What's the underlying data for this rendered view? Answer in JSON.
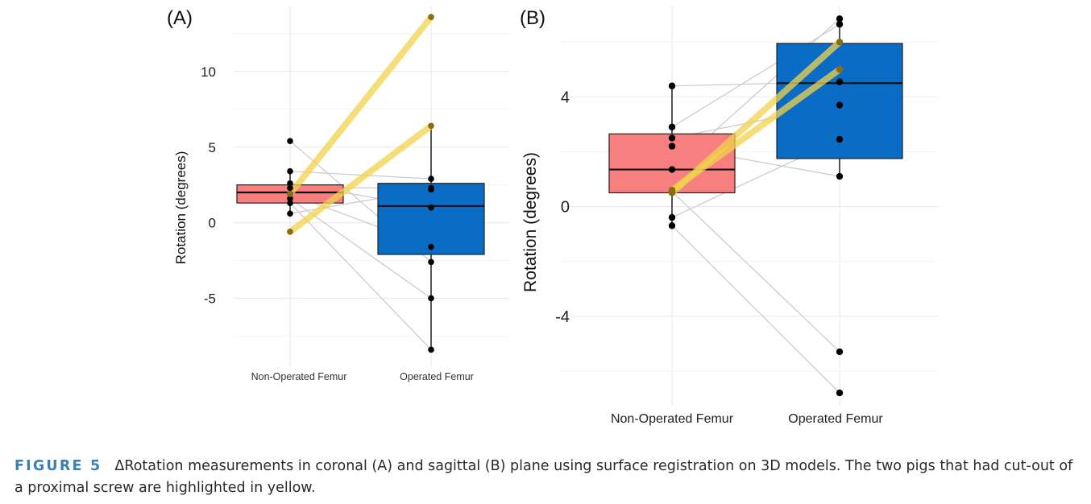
{
  "caption": {
    "label": "FIGURE 5",
    "text": "ΔRotation measurements in coronal (A) and sagittal (B) plane using surface registration on 3D models. The two pigs that had cut-out of a proximal screw are highlighted in yellow."
  },
  "colors": {
    "non_operated_box": "#f77f7f",
    "operated_box": "#0a6cc4",
    "highlight": "#f2d34d",
    "paired_line": "#cccccc"
  },
  "chart_data": [
    {
      "panel": "(A)",
      "type": "box",
      "ylabel": "Rotation (degrees)",
      "categories": [
        "Non-Operated Femur",
        "Operated Femur"
      ],
      "yticks": [
        -5,
        0,
        5,
        10
      ],
      "ylim": [
        -9.5,
        14.3
      ],
      "grid": true,
      "boxes": [
        {
          "category": "Non-Operated Femur",
          "q1": 1.3,
          "median": 2.0,
          "q3": 2.5,
          "whisker_low": 0.6,
          "whisker_high": 3.4
        },
        {
          "category": "Operated Femur",
          "q1": -2.1,
          "median": 1.1,
          "q3": 2.6,
          "whisker_low": -8.4,
          "whisker_high": 6.4
        }
      ],
      "pairs": [
        {
          "non_operated": 2.6,
          "operated": 1.0,
          "highlight": false
        },
        {
          "non_operated": 1.9,
          "operated": -1.6,
          "highlight": false
        },
        {
          "non_operated": 1.6,
          "operated": -5.0,
          "highlight": false
        },
        {
          "non_operated": 1.3,
          "operated": -8.4,
          "highlight": false
        },
        {
          "non_operated": 0.6,
          "operated": 2.2,
          "highlight": false
        },
        {
          "non_operated": 3.4,
          "operated": 2.9,
          "highlight": false
        },
        {
          "non_operated": 2.3,
          "operated": 2.3,
          "highlight": false
        },
        {
          "non_operated": 5.4,
          "operated": -2.6,
          "highlight": false
        },
        {
          "non_operated": 1.9,
          "operated": 13.6,
          "highlight": true
        },
        {
          "non_operated": -0.6,
          "operated": 6.4,
          "highlight": true
        }
      ]
    },
    {
      "panel": "(B)",
      "type": "box",
      "ylabel": "Rotation (degrees)",
      "categories": [
        "Non-Operated Femur",
        "Operated Femur"
      ],
      "yticks": [
        -4,
        0,
        4
      ],
      "ylim": [
        -7.3,
        7.3
      ],
      "grid": true,
      "boxes": [
        {
          "category": "Non-Operated Femur",
          "q1": 0.5,
          "median": 1.35,
          "q3": 2.65,
          "whisker_low": -0.7,
          "whisker_high": 4.4
        },
        {
          "category": "Operated Femur",
          "q1": 1.75,
          "median": 4.5,
          "q3": 5.95,
          "whisker_low": 1.1,
          "whisker_high": 6.85
        }
      ],
      "pairs": [
        {
          "non_operated": 4.4,
          "operated": 4.55,
          "highlight": false
        },
        {
          "non_operated": 2.9,
          "operated": 6.65,
          "highlight": false
        },
        {
          "non_operated": 2.5,
          "operated": 3.7,
          "highlight": false
        },
        {
          "non_operated": 2.2,
          "operated": 1.1,
          "highlight": false
        },
        {
          "non_operated": 1.35,
          "operated": 6.85,
          "highlight": false
        },
        {
          "non_operated": 0.55,
          "operated": -5.3,
          "highlight": false
        },
        {
          "non_operated": -0.4,
          "operated": 2.45,
          "highlight": false
        },
        {
          "non_operated": -0.7,
          "operated": -6.8,
          "highlight": false
        },
        {
          "non_operated": 0.5,
          "operated": 6.0,
          "highlight": true
        },
        {
          "non_operated": 0.6,
          "operated": 5.0,
          "highlight": true
        }
      ]
    }
  ]
}
